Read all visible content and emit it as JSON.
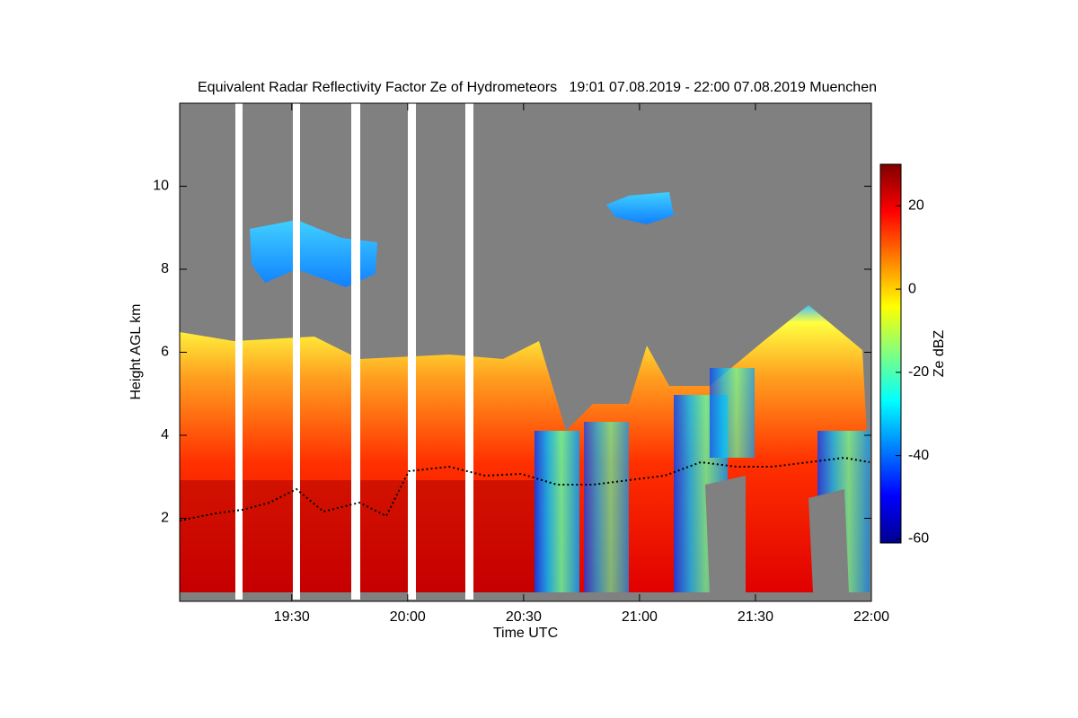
{
  "chart_data": {
    "type": "heatmap",
    "title": "Equivalent Radar Reflectivity Factor Ze of Hydrometeors   19:01 07.08.2019 - 22:00 07.08.2019 Muenchen",
    "x_label": "Time UTC",
    "y_label": "Height AGL km",
    "colorbar_label": "Ze dBZ",
    "xlim": [
      1141,
      1320
    ],
    "xticks": [
      {
        "value": 1170,
        "label": "19:30"
      },
      {
        "value": 1200,
        "label": "20:00"
      },
      {
        "value": 1230,
        "label": "20:30"
      },
      {
        "value": 1260,
        "label": "21:00"
      },
      {
        "value": 1290,
        "label": "21:30"
      },
      {
        "value": 1320,
        "label": "22:00"
      }
    ],
    "ylim": [
      0,
      12
    ],
    "yticks": [
      2,
      4,
      6,
      8,
      10
    ],
    "clim": [
      -61,
      30
    ],
    "cticks": [
      -60,
      -40,
      -20,
      0,
      20
    ],
    "colormap": [
      "#00008f",
      "#0000ff",
      "#0080ff",
      "#00ffff",
      "#80ff80",
      "#ffff00",
      "#ff8000",
      "#ff0000",
      "#800000"
    ]
  }
}
